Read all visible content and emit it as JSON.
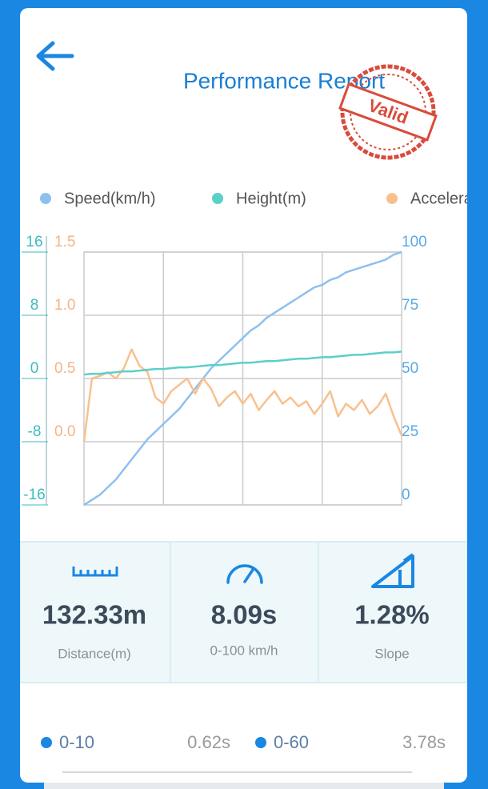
{
  "header": {
    "title": "Performance Report",
    "stamp": "Valid"
  },
  "chart_data": {
    "type": "line",
    "series": [
      {
        "name": "Speed(km/h)",
        "color": "#8ec0ee",
        "axis": "y2",
        "values": [
          0,
          2,
          4,
          7,
          10,
          14,
          18,
          22,
          26,
          29,
          32,
          35,
          38,
          42,
          46,
          50,
          54,
          57,
          60,
          63,
          66,
          69,
          71,
          74,
          76,
          78,
          80,
          82,
          84,
          86,
          87,
          89,
          90,
          92,
          93,
          94,
          95,
          96,
          97,
          99,
          100
        ]
      },
      {
        "name": "Height(m)",
        "color": "#5bd0c8",
        "values": [
          0.5,
          0.6,
          0.6,
          0.7,
          0.8,
          0.9,
          0.9,
          1.0,
          1.1,
          1.2,
          1.2,
          1.3,
          1.4,
          1.4,
          1.5,
          1.6,
          1.7,
          1.7,
          1.8,
          1.9,
          2.0,
          2.0,
          2.1,
          2.2,
          2.2,
          2.3,
          2.4,
          2.5,
          2.5,
          2.6,
          2.7,
          2.7,
          2.8,
          2.9,
          3.0,
          3.0,
          3.1,
          3.2,
          3.3,
          3.3,
          3.4
        ]
      },
      {
        "name": "Acceleration(g)",
        "color": "#f9c08e",
        "axis": "y3",
        "values": [
          0.0,
          0.5,
          0.52,
          0.55,
          0.5,
          0.58,
          0.73,
          0.6,
          0.55,
          0.35,
          0.3,
          0.4,
          0.45,
          0.5,
          0.38,
          0.5,
          0.42,
          0.28,
          0.35,
          0.4,
          0.3,
          0.38,
          0.25,
          0.33,
          0.4,
          0.3,
          0.35,
          0.28,
          0.32,
          0.22,
          0.3,
          0.4,
          0.2,
          0.3,
          0.25,
          0.33,
          0.22,
          0.28,
          0.38,
          0.2,
          0.05
        ]
      }
    ],
    "ylim": [
      -16,
      16
    ],
    "yticks": [
      -16,
      -8,
      0,
      8,
      16
    ],
    "ycolor": "#3cbcc0",
    "y2lim": [
      0,
      100
    ],
    "y2ticks": [
      0,
      25,
      50,
      75,
      100
    ],
    "y2color": "#5aa9e6",
    "y3lim": [
      -0.5,
      1.5
    ],
    "y3ticks": [
      {
        "value": 0,
        "label": "0.0"
      },
      0.5,
      {
        "value": 1,
        "label": "1.0"
      },
      1.5
    ],
    "y3color": "#f5b486",
    "grid": true,
    "legend": "top"
  },
  "stats": [
    {
      "value": "132.33m",
      "label": "Distance(m)"
    },
    {
      "value": "8.09s",
      "label": "0-100 km/h"
    },
    {
      "value": "1.28%",
      "label": "Slope"
    }
  ],
  "splits": [
    {
      "label": "0-10",
      "time": "0.62s"
    },
    {
      "label": "0-60",
      "time": "3.78s"
    }
  ]
}
